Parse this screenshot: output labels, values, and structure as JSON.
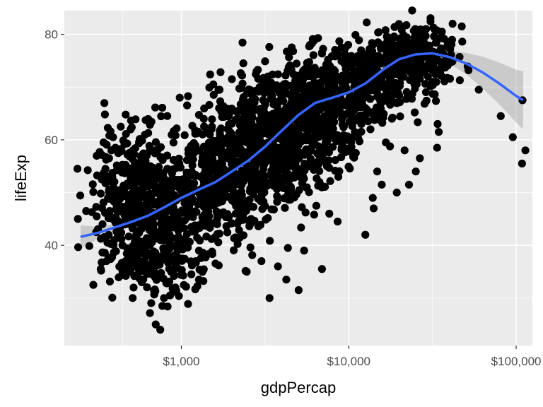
{
  "chart_data": {
    "type": "scatter",
    "title": "",
    "xlabel": "gdpPercap",
    "ylabel": "lifeExp",
    "x_scale": "log10",
    "xlim": [
      200,
      125000
    ],
    "ylim": [
      21,
      84.5
    ],
    "x_ticks": [
      {
        "value": 1000,
        "label": "$1,000"
      },
      {
        "value": 10000,
        "label": "$10,000"
      },
      {
        "value": 100000,
        "label": "$100,000"
      }
    ],
    "y_ticks": [
      {
        "value": 40,
        "label": "40"
      },
      {
        "value": 60,
        "label": "60"
      },
      {
        "value": 80,
        "label": "80"
      }
    ],
    "y_minor": [
      30,
      50,
      70
    ],
    "grid": true,
    "panel_background": "#ebebeb",
    "point_color": "#000000",
    "smooth_color": "#3366ff",
    "band_color": "#999999",
    "points": [
      [
        241,
        45.0
      ],
      [
        270,
        46.5
      ],
      [
        298,
        32.5
      ],
      [
        310,
        42.5
      ],
      [
        312,
        45.5
      ],
      [
        330,
        35.5
      ],
      [
        343,
        59.5
      ],
      [
        338,
        44.0
      ],
      [
        352,
        54.5
      ],
      [
        357,
        37.0
      ],
      [
        362,
        40.5
      ],
      [
        365,
        49.0
      ],
      [
        370,
        56.5
      ],
      [
        382,
        58.0
      ],
      [
        391,
        60.5
      ],
      [
        393,
        51.0
      ],
      [
        404,
        58.5
      ],
      [
        418,
        47.5
      ],
      [
        431,
        44.0
      ],
      [
        445,
        40.0
      ],
      [
        471,
        36.0
      ],
      [
        495,
        38.0
      ],
      [
        512,
        30.0
      ],
      [
        538,
        42.0
      ],
      [
        557,
        50.5
      ],
      [
        560,
        36.0
      ],
      [
        580,
        33.0
      ],
      [
        621,
        57.0
      ],
      [
        648,
        40.0
      ],
      [
        681,
        54.5
      ],
      [
        703,
        25.0
      ],
      [
        724,
        37.0
      ],
      [
        748,
        24.0
      ],
      [
        770,
        28.5
      ],
      [
        788,
        30.0
      ],
      [
        800,
        41.0
      ],
      [
        823,
        38.0
      ],
      [
        856,
        30.5
      ],
      [
        890,
        35.0
      ],
      [
        918,
        46.0
      ],
      [
        921,
        32.0
      ],
      [
        950,
        39.0
      ],
      [
        978,
        68.0
      ],
      [
        1045,
        48.0
      ],
      [
        1082,
        40.0
      ],
      [
        1148,
        34.5
      ],
      [
        1219,
        37.0
      ],
      [
        1274,
        33.5
      ],
      [
        1383,
        55.0
      ],
      [
        1474,
        57.0
      ],
      [
        1513,
        62.0
      ],
      [
        1552,
        70.5
      ],
      [
        1680,
        66.0
      ],
      [
        1807,
        52.0
      ],
      [
        2003,
        71.5
      ],
      [
        2104,
        41.5
      ],
      [
        2207,
        46.0
      ],
      [
        2346,
        74.5
      ],
      [
        2458,
        35.0
      ],
      [
        2610,
        45.0
      ],
      [
        3010,
        37.0
      ],
      [
        3130,
        63.0
      ],
      [
        3363,
        30.0
      ],
      [
        3491,
        64.0
      ],
      [
        3776,
        36.0
      ],
      [
        4235,
        33.5
      ],
      [
        4330,
        39.5
      ],
      [
        4450,
        52.5
      ],
      [
        5018,
        31.5
      ],
      [
        5412,
        39.0
      ],
      [
        5620,
        51.0
      ],
      [
        5863,
        78.0
      ],
      [
        6400,
        47.5
      ],
      [
        6918,
        35.5
      ],
      [
        7410,
        55.0
      ],
      [
        7650,
        46.0
      ],
      [
        8580,
        44.5
      ],
      [
        9140,
        59.0
      ],
      [
        9920,
        78.0
      ],
      [
        11020,
        57.5
      ],
      [
        11890,
        63.0
      ],
      [
        12560,
        42.0
      ],
      [
        13480,
        62.0
      ],
      [
        14090,
        47.0
      ],
      [
        14780,
        54.0
      ],
      [
        15740,
        51.5
      ],
      [
        16660,
        59.5
      ],
      [
        17640,
        71.0
      ],
      [
        18100,
        64.0
      ],
      [
        19360,
        50.0
      ],
      [
        21550,
        58.0
      ],
      [
        22900,
        51.5
      ],
      [
        25150,
        54.0
      ],
      [
        26590,
        56.5
      ],
      [
        28950,
        81.0
      ],
      [
        31660,
        71.0
      ],
      [
        33700,
        58.5
      ],
      [
        33950,
        63.0
      ],
      [
        34480,
        61.5
      ],
      [
        35980,
        80.5
      ],
      [
        39730,
        78.5
      ],
      [
        41700,
        82.0
      ],
      [
        47310,
        81.5
      ],
      [
        59800,
        69.5
      ],
      [
        80900,
        64.5
      ],
      [
        95460,
        60.5
      ],
      [
        109100,
        67.5
      ],
      [
        108400,
        55.5
      ],
      [
        113500,
        58.0
      ]
    ],
    "clouds": [
      {
        "xr": [
          300,
          1000
        ],
        "yr": [
          33,
          62
        ],
        "n": 380
      },
      {
        "xr": [
          500,
          1500
        ],
        "yr": [
          30,
          56
        ],
        "n": 260
      },
      {
        "xr": [
          900,
          3000
        ],
        "yr": [
          40,
          66
        ],
        "n": 320
      },
      {
        "xr": [
          1500,
          6000
        ],
        "yr": [
          45,
          72
        ],
        "n": 360
      },
      {
        "xr": [
          3000,
          12000
        ],
        "yr": [
          55,
          76
        ],
        "n": 340
      },
      {
        "xr": [
          6000,
          25000
        ],
        "yr": [
          63,
          79
        ],
        "n": 320
      },
      {
        "xr": [
          15000,
          45000
        ],
        "yr": [
          70,
          82
        ],
        "n": 260
      },
      {
        "xr": [
          2000,
          8000
        ],
        "yr": [
          50,
          70
        ],
        "n": 200
      }
    ],
    "smooth_fit": [
      {
        "x": 250,
        "y": 41.6,
        "se": 2.2
      },
      {
        "x": 320,
        "y": 42.4,
        "se": 1.1
      },
      {
        "x": 400,
        "y": 43.4,
        "se": 0.7
      },
      {
        "x": 500,
        "y": 44.4,
        "se": 0.5
      },
      {
        "x": 630,
        "y": 45.6,
        "se": 0.5
      },
      {
        "x": 800,
        "y": 47.3,
        "se": 0.5
      },
      {
        "x": 1000,
        "y": 49.0,
        "se": 0.5
      },
      {
        "x": 1260,
        "y": 50.5,
        "se": 0.5
      },
      {
        "x": 1600,
        "y": 52.0,
        "se": 0.5
      },
      {
        "x": 2000,
        "y": 54.0,
        "se": 0.5
      },
      {
        "x": 2500,
        "y": 56.0,
        "se": 0.5
      },
      {
        "x": 3160,
        "y": 58.7,
        "se": 0.5
      },
      {
        "x": 4000,
        "y": 61.8,
        "se": 0.5
      },
      {
        "x": 5000,
        "y": 64.7,
        "se": 0.5
      },
      {
        "x": 6300,
        "y": 67.0,
        "se": 0.5
      },
      {
        "x": 8000,
        "y": 68.0,
        "se": 0.5
      },
      {
        "x": 10000,
        "y": 69.0,
        "se": 0.5
      },
      {
        "x": 12600,
        "y": 70.7,
        "se": 0.6
      },
      {
        "x": 16000,
        "y": 73.3,
        "se": 0.6
      },
      {
        "x": 20000,
        "y": 75.3,
        "se": 0.6
      },
      {
        "x": 25000,
        "y": 76.2,
        "se": 0.7
      },
      {
        "x": 31600,
        "y": 76.4,
        "se": 0.9
      },
      {
        "x": 40000,
        "y": 75.7,
        "se": 1.3
      },
      {
        "x": 50000,
        "y": 74.5,
        "se": 2.0
      },
      {
        "x": 63000,
        "y": 72.8,
        "se": 3.0
      },
      {
        "x": 80000,
        "y": 70.6,
        "se": 4.0
      },
      {
        "x": 100000,
        "y": 68.3,
        "se": 5.0
      },
      {
        "x": 110000,
        "y": 67.5,
        "se": 5.5
      }
    ]
  }
}
